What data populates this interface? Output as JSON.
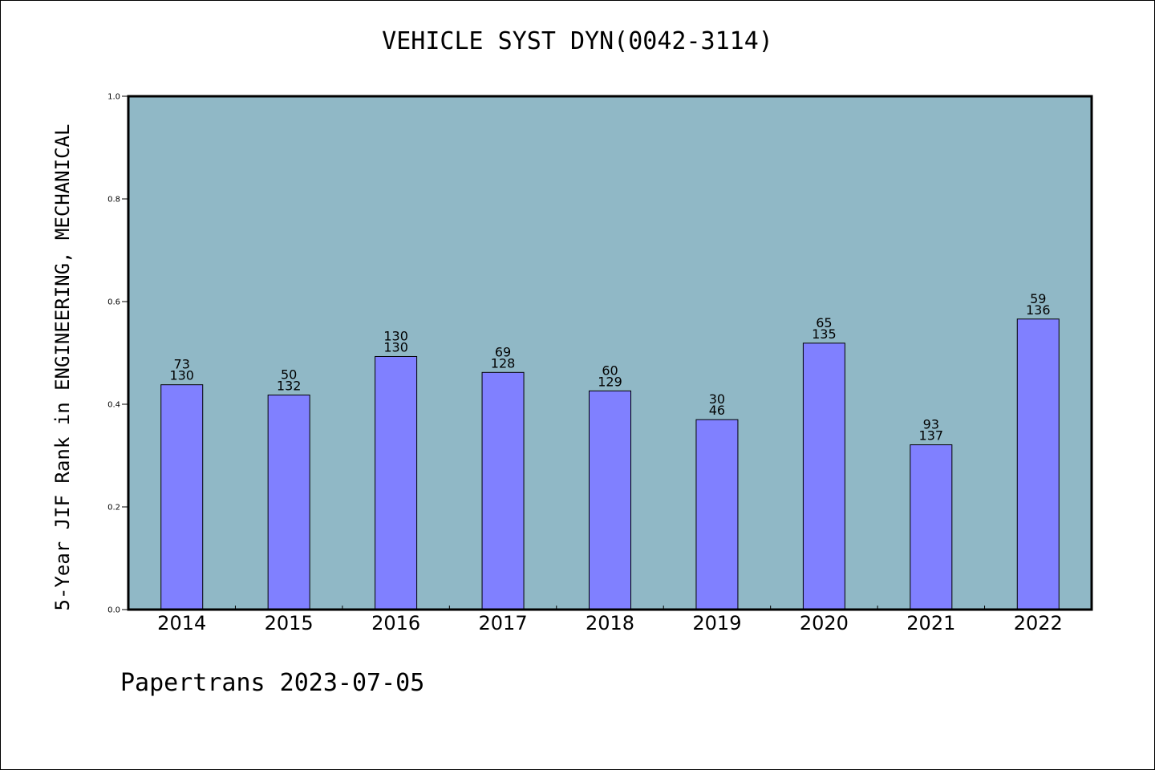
{
  "chart_data": {
    "type": "bar",
    "title": "VEHICLE SYST DYN(0042-3114)",
    "xlabel": "",
    "ylabel": "5-Year JIF Rank in ENGINEERING, MECHANICAL",
    "ylim": [
      0,
      1.0
    ],
    "yticks": [
      "0.0",
      "0.2",
      "0.4",
      "0.6",
      "0.8",
      "1.0"
    ],
    "categories": [
      "2014",
      "2015",
      "2016",
      "2017",
      "2018",
      "2019",
      "2020",
      "2021",
      "2022"
    ],
    "values": [
      0.438,
      0.418,
      0.493,
      0.462,
      0.426,
      0.37,
      0.519,
      0.321,
      0.566
    ],
    "labels_top": [
      "73",
      "50",
      "130",
      "69",
      "60",
      "30",
      "65",
      "93",
      "59"
    ],
    "labels_bottom": [
      "130",
      "132",
      "130",
      "128",
      "129",
      "46",
      "135",
      "137",
      "136"
    ],
    "grid": false,
    "colors": {
      "plot_background": "#90b8c6",
      "bar": "#8080ff",
      "bar_edge": "#000000"
    }
  },
  "footer": "Papertrans 2023-07-05"
}
